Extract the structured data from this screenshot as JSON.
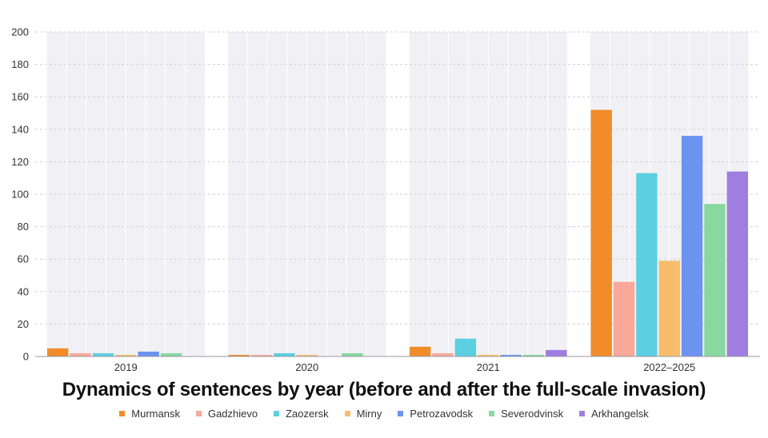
{
  "chart_data": {
    "type": "bar",
    "title": "Dynamics of sentences by year (before and after the full-scale invasion)",
    "xlabel": "",
    "ylabel": "",
    "categories": [
      "2019",
      "2020",
      "2021",
      "2022–2025"
    ],
    "ylim": [
      0,
      200
    ],
    "yticks": [
      0,
      20,
      40,
      60,
      80,
      100,
      120,
      140,
      160,
      180,
      200
    ],
    "grid": true,
    "legend_position": "bottom",
    "series": [
      {
        "name": "Murmansk",
        "color": "#f08c2a",
        "values": [
          5,
          1,
          6,
          152
        ]
      },
      {
        "name": "Gadzhievo",
        "color": "#f9a89a",
        "values": [
          2,
          1,
          2,
          46
        ]
      },
      {
        "name": "Zaozersk",
        "color": "#5ccfe0",
        "values": [
          2,
          2,
          11,
          113
        ]
      },
      {
        "name": "Mirny",
        "color": "#f7bd6a",
        "values": [
          1,
          1,
          1,
          59
        ]
      },
      {
        "name": "Petrozavodsk",
        "color": "#6b93ef",
        "values": [
          3,
          0,
          1,
          136
        ]
      },
      {
        "name": "Severodvinsk",
        "color": "#88d8a0",
        "values": [
          2,
          2,
          1,
          94
        ]
      },
      {
        "name": "Arkhangelsk",
        "color": "#a07ee0",
        "values": [
          0,
          0,
          4,
          114
        ]
      }
    ]
  }
}
